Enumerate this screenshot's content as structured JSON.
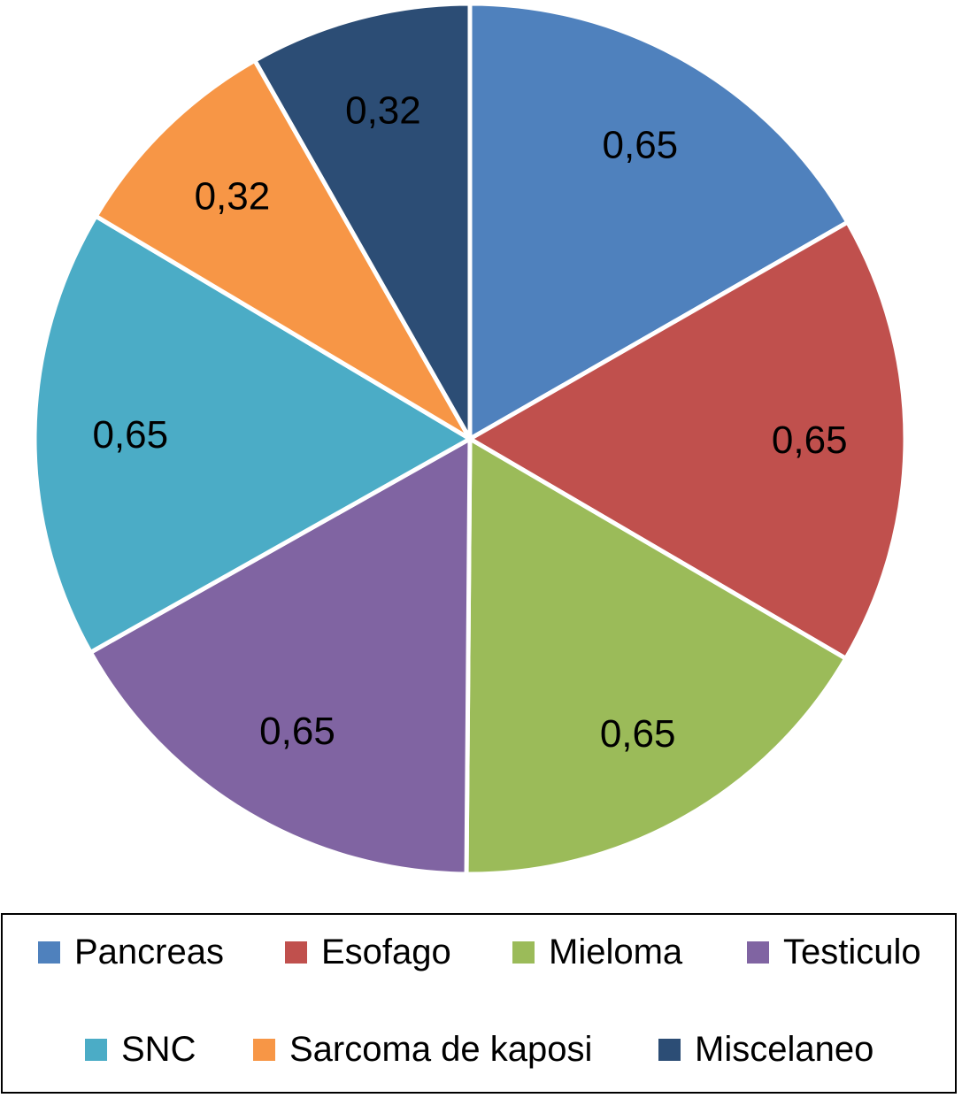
{
  "chart_data": {
    "type": "pie",
    "slices": [
      {
        "label": "Pancreas",
        "value": 0.65,
        "display": "0,65",
        "color": "#4f81bd"
      },
      {
        "label": "Esofago",
        "value": 0.65,
        "display": "0,65",
        "color": "#c0504d"
      },
      {
        "label": "Mieloma",
        "value": 0.65,
        "display": "0,65",
        "color": "#9bbb59"
      },
      {
        "label": "Testiculo",
        "value": 0.65,
        "display": "0,65",
        "color": "#8064a2"
      },
      {
        "label": "SNC",
        "value": 0.65,
        "display": "0,65",
        "color": "#4bacc6"
      },
      {
        "label": "Sarcoma de kaposi",
        "value": 0.32,
        "display": "0,32",
        "color": "#f79646"
      },
      {
        "label": "Miscelaneo",
        "value": 0.32,
        "display": "0,32",
        "color": "#2c4d75"
      }
    ],
    "start": "12 o'clock",
    "direction": "clockwise",
    "legend_position": "bottom"
  }
}
